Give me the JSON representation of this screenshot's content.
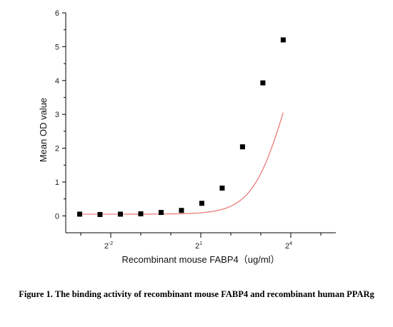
{
  "chart_data": {
    "type": "scatter",
    "xlabel": "Recombinant mouse FABP4（ug/ml）",
    "ylabel": "Mean OD value",
    "x_scale": "log2",
    "xlim": [
      0.0884,
      45.25
    ],
    "ylim": [
      -0.5,
      6
    ],
    "x_ticks": [
      {
        "value": 0.25,
        "base": "2",
        "exp": "-2"
      },
      {
        "value": 2,
        "base": "2",
        "exp": "1"
      },
      {
        "value": 16,
        "base": "2",
        "exp": "4"
      }
    ],
    "y_ticks": [
      0,
      1,
      2,
      3,
      4,
      5,
      6
    ],
    "grid": false,
    "series": [
      {
        "marker": "square",
        "fit_line": "logistic",
        "fit_color": "#e8726f",
        "marker_color": "#000000",
        "x": [
          0.122,
          0.195,
          0.3125,
          0.5,
          0.8,
          1.28,
          2.048,
          3.277,
          5.243,
          8.389,
          13.42,
          21.47,
          34.36
        ],
        "y": [
          0.05,
          0.04,
          0.05,
          0.06,
          0.1,
          0.16,
          0.37,
          0.82,
          2.04,
          3.93,
          5.2,
          null,
          null
        ]
      }
    ]
  },
  "caption": "Figure 1. The binding activity of recombinant mouse FABP4 and recombinant human PPARg"
}
